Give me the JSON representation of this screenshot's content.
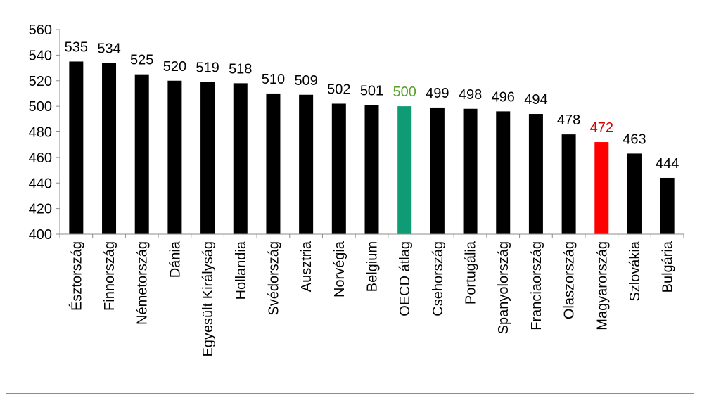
{
  "chart_data": {
    "type": "bar",
    "title": "",
    "xlabel": "",
    "ylabel": "",
    "ylim": [
      400,
      560
    ],
    "yticks": [
      400,
      420,
      440,
      460,
      480,
      500,
      520,
      540,
      560
    ],
    "grid": false,
    "legend": "none",
    "categories": [
      "Észtország",
      "Finnország",
      "Németország",
      "Dánia",
      "Egyesült Királyság",
      "Hollandia",
      "Svédország",
      "Ausztria",
      "Norvégia",
      "Belgium",
      "OECD átlag",
      "Csehország",
      "Portugália",
      "Spanyolország",
      "Franciaország",
      "Olaszország",
      "Magyarország",
      "Szlovákia",
      "Bulgária"
    ],
    "values": [
      535,
      534,
      525,
      520,
      519,
      518,
      510,
      509,
      502,
      501,
      500,
      499,
      498,
      496,
      494,
      478,
      472,
      463,
      444
    ],
    "colors": {
      "default_bar": "#000000",
      "highlight": {
        "OECD átlag": "#0f9b74",
        "Magyarország": "#ff0000"
      },
      "label_default": "#000000",
      "label_highlight": {
        "OECD átlag": "#5aa02c",
        "Magyarország": "#d00000"
      }
    }
  }
}
